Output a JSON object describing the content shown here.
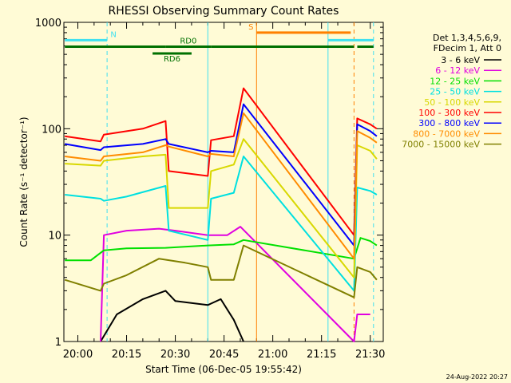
{
  "chart_data": {
    "type": "line",
    "title": "RHESSI Observing Summary Count Rates",
    "xlabel": "Start Time (06-Dec-05 19:55:42)",
    "ylabel": "Count Rate (s⁻¹ detector⁻¹)",
    "yscale": "log",
    "ylim": [
      1,
      1000
    ],
    "xlim": [
      "19:55:42",
      "21:34:00"
    ],
    "x_ticks": [
      "20:00",
      "20:15",
      "20:30",
      "20:45",
      "21:00",
      "21:15",
      "21:30"
    ],
    "y_ticks": [
      "1",
      "10",
      "100",
      "1000"
    ],
    "legend_header": [
      "Det 1,3,4,5,6,9,",
      "FDecim 1, Att 0"
    ],
    "legend_position": "right",
    "footer_date": "24-Aug-2022 20:27",
    "series": [
      {
        "name": "3 - 6 keV",
        "color": "#000000",
        "x": [
          "20:07",
          "20:12",
          "20:20",
          "20:27",
          "20:30",
          "20:40",
          "20:44",
          "20:48",
          "20:51"
        ],
        "y": [
          1,
          1.8,
          2.5,
          3,
          2.4,
          2.2,
          2.5,
          1.6,
          1
        ]
      },
      {
        "name": "6 - 12 keV",
        "color": "#e000e0",
        "x": [
          "20:07",
          "20:08",
          "20:15",
          "20:25",
          "20:30",
          "20:40",
          "20:46",
          "20:50",
          "21:25",
          "21:26",
          "21:28",
          "21:30"
        ],
        "y": [
          1,
          10,
          11,
          11.5,
          11,
          10,
          10,
          12,
          1,
          1.8,
          1.8,
          1.8
        ]
      },
      {
        "name": "12 - 25 keV",
        "color": "#00e000",
        "x": [
          "19:56",
          "20:04",
          "20:08",
          "20:15",
          "20:27",
          "20:40",
          "20:48",
          "20:51",
          "21:25",
          "21:27",
          "21:30",
          "21:32"
        ],
        "y": [
          5.8,
          5.8,
          7.2,
          7.5,
          7.6,
          8,
          8.2,
          9,
          6,
          9.4,
          8.8,
          8
        ]
      },
      {
        "name": "25 - 50 keV",
        "color": "#00e0e0",
        "x": [
          "19:56",
          "20:07",
          "20:08",
          "20:15",
          "20:27",
          "20:28",
          "20:40",
          "20:41",
          "20:48",
          "20:51",
          "21:25",
          "21:26",
          "21:30",
          "21:32"
        ],
        "y": [
          24,
          22,
          21,
          23,
          29,
          11,
          9,
          22,
          25,
          55,
          3,
          28,
          26,
          24
        ]
      },
      {
        "name": "50 - 100 keV",
        "color": "#d8d800",
        "x": [
          "19:56",
          "20:07",
          "20:08",
          "20:20",
          "20:27",
          "20:28",
          "20:40",
          "20:41",
          "20:48",
          "20:51",
          "21:25",
          "21:26",
          "21:30",
          "21:32"
        ],
        "y": [
          47,
          45,
          50,
          55,
          57,
          18,
          18,
          40,
          46,
          80,
          4,
          70,
          62,
          52
        ]
      },
      {
        "name": "100 - 300 keV",
        "color": "#ff0000",
        "x": [
          "19:56",
          "20:07",
          "20:08",
          "20:20",
          "20:27",
          "20:28",
          "20:40",
          "20:41",
          "20:48",
          "20:51",
          "21:25",
          "21:26",
          "21:30",
          "21:32"
        ],
        "y": [
          85,
          76,
          88,
          100,
          118,
          40,
          36,
          78,
          85,
          240,
          10,
          125,
          110,
          100
        ]
      },
      {
        "name": "300 - 800 keV",
        "color": "#0000ff",
        "x": [
          "19:56",
          "20:07",
          "20:08",
          "20:20",
          "20:27",
          "20:28",
          "20:40",
          "20:41",
          "20:48",
          "20:51",
          "21:25",
          "21:26",
          "21:30",
          "21:32"
        ],
        "y": [
          72,
          63,
          67,
          72,
          80,
          72,
          60,
          62,
          60,
          170,
          8,
          110,
          95,
          85
        ]
      },
      {
        "name": "800 - 7000 keV",
        "color": "#ff8c00",
        "x": [
          "19:56",
          "20:07",
          "20:08",
          "20:20",
          "20:27",
          "20:28",
          "20:40",
          "20:41",
          "20:48",
          "20:51",
          "21:25",
          "21:26",
          "21:30",
          "21:32"
        ],
        "y": [
          55,
          50,
          55,
          60,
          70,
          68,
          55,
          58,
          55,
          140,
          6,
          95,
          82,
          74
        ]
      },
      {
        "name": "7000 - 15000 keV",
        "color": "#808000",
        "x": [
          "19:56",
          "20:07",
          "20:08",
          "20:15",
          "20:25",
          "20:33",
          "20:40",
          "20:41",
          "20:48",
          "20:51",
          "21:25",
          "21:26",
          "21:30",
          "21:32"
        ],
        "y": [
          3.8,
          3,
          3.5,
          4.2,
          6,
          5.5,
          5,
          3.8,
          3.8,
          8,
          2.6,
          5,
          4.5,
          3.8
        ]
      }
    ],
    "annotations": {
      "segments": [
        {
          "label": "N",
          "color": "#40e0f0",
          "x_start": "19:56",
          "x_end": "20:09",
          "y": 680
        },
        {
          "label": "",
          "color": "#40e0f0",
          "x_start": "21:17",
          "x_end": "21:31",
          "y": 680
        },
        {
          "label": "S",
          "color": "#ff8000",
          "x_start": "20:55",
          "x_end": "21:24",
          "y": 800
        },
        {
          "label": "RD0",
          "color": "#007000",
          "x_start": "20:27",
          "x_end": "20:41",
          "y": 590
        },
        {
          "label": "RD6",
          "color": "#007000",
          "x_start": "20:23",
          "x_end": "20:35",
          "y": 510
        },
        {
          "label": "",
          "color": "#007000",
          "x_start": "19:56",
          "x_end": "20:27",
          "y": 590
        },
        {
          "label": "",
          "color": "#007000",
          "x_start": "20:41",
          "x_end": "21:25",
          "y": 590
        },
        {
          "label": "",
          "color": "#007000",
          "x_start": "21:26",
          "x_end": "21:31",
          "y": 590
        }
      ],
      "vlines": [
        {
          "x": "20:09",
          "color": "#40e0f0",
          "dashed": true
        },
        {
          "x": "20:40",
          "color": "#40e0f0",
          "dashed": false
        },
        {
          "x": "20:55",
          "color": "#ff8000",
          "dashed": false
        },
        {
          "x": "21:17",
          "color": "#40e0f0",
          "dashed": false
        },
        {
          "x": "21:25",
          "color": "#ff8000",
          "dashed": true
        },
        {
          "x": "21:31",
          "color": "#40e0f0",
          "dashed": true
        }
      ]
    }
  }
}
